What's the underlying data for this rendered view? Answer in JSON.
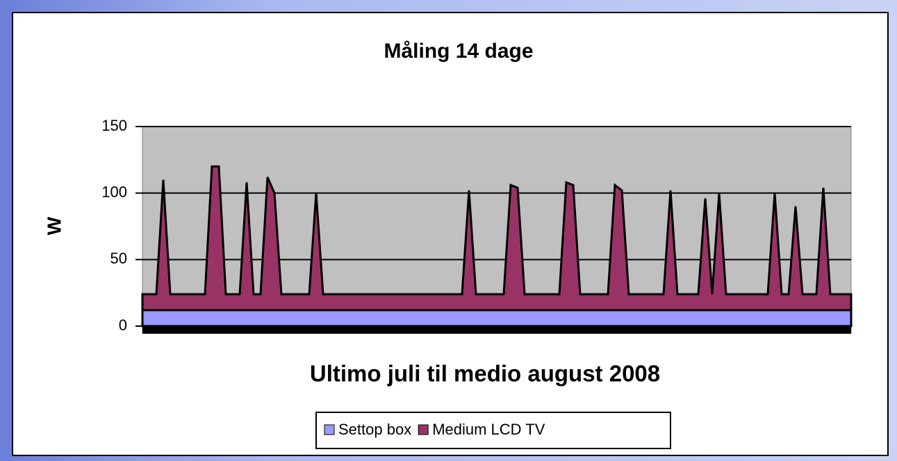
{
  "chart_data": {
    "type": "stacked_area",
    "title": "Måling 14 dage",
    "ylabel": "W",
    "xlabel": "Ultimo juli til medio august 2008",
    "ylim": [
      0,
      150
    ],
    "yticks": [
      0,
      50,
      100,
      150
    ],
    "grid": true,
    "series": [
      {
        "name": "Settop box",
        "color": "#9999ff",
        "values": [
          12,
          12,
          12,
          12,
          12,
          12,
          12,
          12,
          12,
          12,
          12,
          12,
          12,
          12,
          12,
          12,
          12,
          12,
          12,
          12,
          12,
          12,
          12,
          12,
          12,
          12,
          12,
          12,
          12,
          12,
          12,
          12,
          12,
          12,
          12,
          12,
          12,
          12,
          12,
          12,
          12,
          12,
          12,
          12,
          12,
          12,
          12,
          12,
          12,
          12,
          12,
          12,
          12,
          12,
          12,
          12,
          12,
          12,
          12,
          12,
          12,
          12,
          12,
          12,
          12,
          12,
          12,
          12,
          12,
          12,
          12,
          12,
          12,
          12,
          12,
          12,
          12,
          12,
          12,
          12,
          12,
          12,
          12,
          12,
          12,
          12,
          12,
          12,
          12,
          12,
          12,
          12,
          12,
          12,
          12,
          12,
          12,
          12,
          12,
          12,
          12,
          12,
          12
        ]
      },
      {
        "name": "Medium LCD TV",
        "color": "#993366",
        "values": [
          12,
          12,
          12,
          98,
          12,
          12,
          12,
          12,
          12,
          12,
          108,
          108,
          12,
          12,
          12,
          96,
          12,
          12,
          100,
          88,
          12,
          12,
          12,
          12,
          12,
          88,
          12,
          12,
          12,
          12,
          12,
          12,
          12,
          12,
          12,
          12,
          12,
          12,
          12,
          12,
          12,
          12,
          12,
          12,
          12,
          12,
          12,
          90,
          12,
          12,
          12,
          12,
          12,
          94,
          92,
          12,
          12,
          12,
          12,
          12,
          12,
          96,
          94,
          12,
          12,
          12,
          12,
          12,
          94,
          90,
          12,
          12,
          12,
          12,
          12,
          12,
          90,
          12,
          12,
          12,
          12,
          84,
          12,
          88,
          12,
          12,
          12,
          12,
          12,
          12,
          12,
          88,
          12,
          12,
          78,
          12,
          12,
          12,
          92,
          12,
          12,
          12,
          12
        ]
      }
    ]
  }
}
